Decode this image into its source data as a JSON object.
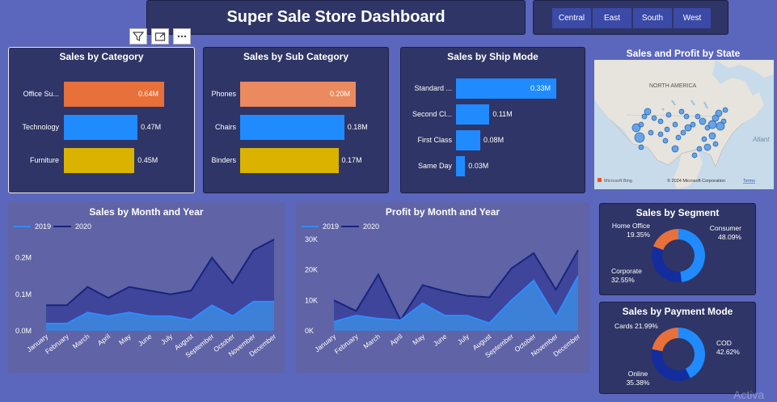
{
  "dashboard": {
    "title": "Super Sale Store Dashboard"
  },
  "region_slicer": {
    "options": [
      "Central",
      "East",
      "South",
      "West"
    ]
  },
  "visual_toolbar": {
    "icons": [
      "filter-icon",
      "focus-mode-icon",
      "more-options-icon"
    ]
  },
  "colors": {
    "background": "#5b66bd",
    "panel": "#2f3566",
    "orange": "#e8703a",
    "blue": "#1f8bff",
    "gold": "#d9b300",
    "navy": "#1a2a9e",
    "series_2019": "#2f8bff",
    "series_2020": "#18247c"
  },
  "sales_by_category": {
    "title": "Sales by Category",
    "chart_data": {
      "type": "bar",
      "categories": [
        "Office Su...",
        "Technology",
        "Furniture"
      ],
      "values": [
        0.64,
        0.47,
        0.45
      ],
      "labels": [
        "0.64M",
        "0.47M",
        "0.45M"
      ],
      "colors": [
        "#e8703a",
        "#1f8bff",
        "#d9b300"
      ]
    }
  },
  "sales_by_sub_category": {
    "title": "Sales by Sub Category",
    "chart_data": {
      "type": "bar",
      "categories": [
        "Phones",
        "Chairs",
        "Binders"
      ],
      "values": [
        0.2,
        0.18,
        0.17
      ],
      "labels": [
        "0.20M",
        "0.18M",
        "0.17M"
      ],
      "colors": [
        "#ea8a5e",
        "#1f8bff",
        "#d9b300"
      ]
    }
  },
  "sales_by_ship_mode": {
    "title": "Sales by Ship Mode",
    "chart_data": {
      "type": "bar",
      "categories": [
        "Standard ...",
        "Second Cl...",
        "First Class",
        "Same Day"
      ],
      "values": [
        0.33,
        0.11,
        0.08,
        0.03
      ],
      "labels": [
        "0.33M",
        "0.11M",
        "0.08M",
        "0.03M"
      ],
      "colors": [
        "#1f8bff",
        "#1f8bff",
        "#1f8bff",
        "#1f8bff"
      ]
    }
  },
  "sales_profit_by_state": {
    "title": "Sales and Profit by State",
    "map_label": "NORTH AMERICA",
    "ocean_label": "Atlant",
    "bing_logo": "Microsoft Bing",
    "copyright": "© 2024 Microsoft Corporation",
    "terms": "Terms"
  },
  "sales_by_month_year": {
    "title": "Sales by Month and Year",
    "chart_data": {
      "type": "area",
      "x": [
        "January",
        "February",
        "March",
        "April",
        "May",
        "June",
        "July",
        "August",
        "September",
        "October",
        "November",
        "December"
      ],
      "series": [
        {
          "name": "2019",
          "values": [
            0.02,
            0.02,
            0.05,
            0.04,
            0.05,
            0.04,
            0.04,
            0.03,
            0.07,
            0.04,
            0.08,
            0.08
          ]
        },
        {
          "name": "2020",
          "values": [
            0.07,
            0.07,
            0.12,
            0.09,
            0.12,
            0.11,
            0.1,
            0.11,
            0.2,
            0.13,
            0.22,
            0.25
          ]
        }
      ],
      "ylim": [
        0,
        0.25
      ],
      "yticks": [
        "0.0M",
        "0.1M",
        "0.2M"
      ]
    }
  },
  "profit_by_month_year": {
    "title": "Profit by Month and Year",
    "chart_data": {
      "type": "area",
      "x": [
        "January",
        "February",
        "March",
        "April",
        "May",
        "June",
        "July",
        "August",
        "September",
        "October",
        "November",
        "December"
      ],
      "series": [
        {
          "name": "2019",
          "values": [
            3000,
            5000,
            4000,
            3500,
            9000,
            5000,
            5000,
            2500,
            10000,
            16500,
            4500,
            18000
          ]
        },
        {
          "name": "2020",
          "values": [
            10000,
            6500,
            18500,
            3500,
            15000,
            13000,
            11500,
            11000,
            20500,
            25500,
            13500,
            26500
          ]
        }
      ],
      "ylim": [
        0,
        30000
      ],
      "yticks": [
        "0K",
        "10K",
        "20K",
        "30K"
      ]
    }
  },
  "sales_by_segment": {
    "title": "Sales by Segment",
    "chart_data": {
      "type": "pie",
      "slices": [
        {
          "name": "Consumer",
          "value": 48.09,
          "label": "48.09%",
          "color": "#1f8bff"
        },
        {
          "name": "Corporate",
          "value": 32.55,
          "label": "32.55%",
          "color": "#132c9e"
        },
        {
          "name": "Home Office",
          "value": 19.35,
          "label": "19.35%",
          "color": "#e8703a"
        }
      ]
    }
  },
  "sales_by_payment_mode": {
    "title": "Sales by Payment Mode",
    "chart_data": {
      "type": "pie",
      "slices": [
        {
          "name": "COD",
          "value": 42.62,
          "label": "42.62%",
          "color": "#1f8bff"
        },
        {
          "name": "Online",
          "value": 35.38,
          "label": "35.38%",
          "color": "#132c9e"
        },
        {
          "name": "Cards",
          "value": 21.99,
          "label": "21.99%",
          "color": "#e8703a"
        }
      ]
    }
  },
  "watermark": "Activa"
}
